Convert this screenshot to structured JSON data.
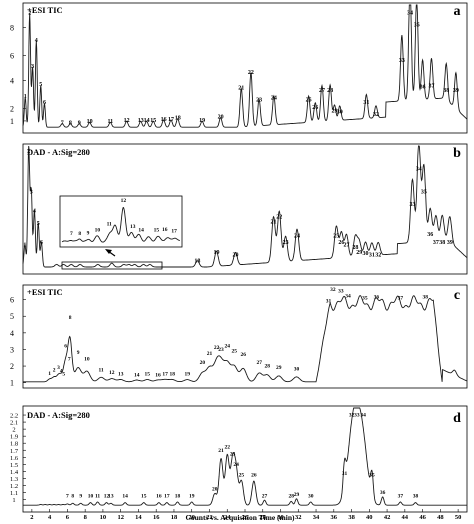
{
  "chart_data": [
    {
      "type": "line",
      "panel": "a",
      "trace_label": "+ESI TIC",
      "y_ticks": [
        "1",
        "2",
        "4",
        "6",
        "8"
      ],
      "peak_labels": [
        "1",
        "2",
        "3",
        "4",
        "5",
        "6",
        "7",
        "8",
        "9",
        "10",
        "11",
        "12",
        "13",
        "14",
        "15",
        "16",
        "17",
        "18",
        "19",
        "20",
        "21",
        "22",
        "23",
        "24",
        "25",
        "26",
        "27",
        "28",
        "29",
        "30",
        "31",
        "32",
        "33",
        "34",
        "35",
        "36",
        "37",
        "38",
        "39"
      ]
    },
    {
      "type": "line",
      "panel": "b",
      "trace_label": "DAD - A:Sig=280",
      "y_ticks": [],
      "peak_labels": [
        "1",
        "2",
        "3",
        "4",
        "5",
        "6",
        "7",
        "8",
        "9",
        "10",
        "11",
        "12",
        "13",
        "14",
        "15",
        "16",
        "17",
        "18",
        "19",
        "20",
        "21",
        "22",
        "23",
        "24",
        "25",
        "26",
        "27",
        "28",
        "29",
        "30",
        "31",
        "32",
        "33",
        "34",
        "35",
        "36",
        "37",
        "38",
        "39"
      ],
      "inset_labels": [
        "7",
        "8",
        "9",
        "10",
        "11",
        "12",
        "13",
        "14",
        "15",
        "16",
        "17"
      ]
    },
    {
      "type": "line",
      "panel": "c",
      "trace_label": "+ESI TIC",
      "y_ticks": [
        "1",
        "1.5",
        "2",
        "2.5",
        "3",
        "3.5",
        "4",
        "4.5",
        "5",
        "5.5",
        "6"
      ],
      "peak_labels": [
        "1",
        "2",
        "3",
        "4",
        "5",
        "6",
        "7",
        "8",
        "9",
        "10",
        "11",
        "12",
        "13",
        "14",
        "15",
        "16",
        "17",
        "18",
        "19",
        "20",
        "21",
        "22",
        "23",
        "24",
        "25",
        "26",
        "27",
        "28",
        "29",
        "30",
        "31",
        "32",
        "33",
        "34",
        "35",
        "36",
        "37",
        "38"
      ]
    },
    {
      "type": "line",
      "panel": "d",
      "trace_label": "DAD - A:Sig=280",
      "y_ticks": [
        "1",
        "1.1",
        "1.2",
        "1.3",
        "1.4",
        "1.5",
        "1.6",
        "1.7",
        "1.8",
        "1.9",
        "2",
        "2.1",
        "2.2"
      ],
      "peak_labels": [
        "1",
        "2",
        "3",
        "4",
        "5",
        "6",
        "7",
        "8",
        "9",
        "10",
        "11",
        "12",
        "13",
        "14",
        "15",
        "16",
        "17",
        "18",
        "19",
        "20",
        "21",
        "22",
        "23",
        "24",
        "25",
        "26",
        "27",
        "28",
        "29",
        "30",
        "31",
        "32",
        "33",
        "34",
        "35",
        "36",
        "37",
        "38"
      ],
      "x_ticks": [
        "2",
        "4",
        "6",
        "8",
        "10",
        "12",
        "14",
        "16",
        "18",
        "20",
        "22",
        "24",
        "26",
        "28",
        "30",
        "32",
        "34",
        "36",
        "38",
        "40",
        "42",
        "44",
        "46",
        "48",
        "50"
      ],
      "xlabel": "Counts vs. Acquisition Time (min)",
      "xlim": [
        1,
        51
      ]
    }
  ]
}
